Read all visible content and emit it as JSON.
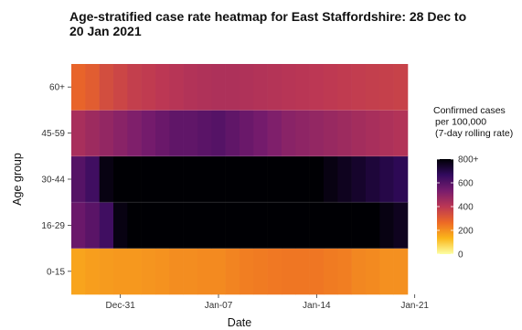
{
  "chart_data": {
    "type": "heatmap",
    "title": "Age-stratified case rate heatmap for East Staffordshire: 28 Dec to 20 Jan 2021",
    "xlabel": "Date",
    "ylabel": "Age group",
    "x_ticks": [
      "Dec-31",
      "Jan-07",
      "Jan-14",
      "Jan-21"
    ],
    "dates": [
      "2020-12-28",
      "2020-12-29",
      "2020-12-30",
      "2020-12-31",
      "2021-01-01",
      "2021-01-02",
      "2021-01-03",
      "2021-01-04",
      "2021-01-05",
      "2021-01-06",
      "2021-01-07",
      "2021-01-08",
      "2021-01-09",
      "2021-01-10",
      "2021-01-11",
      "2021-01-12",
      "2021-01-13",
      "2021-01-14",
      "2021-01-15",
      "2021-01-16",
      "2021-01-17",
      "2021-01-18",
      "2021-01-19",
      "2021-01-20"
    ],
    "age_groups": [
      "0-15",
      "16-29",
      "30-44",
      "45-59",
      "60+"
    ],
    "values": [
      [
        165,
        175,
        180,
        185,
        185,
        190,
        195,
        205,
        205,
        210,
        210,
        220,
        230,
        235,
        240,
        245,
        245,
        245,
        235,
        230,
        215,
        210,
        200,
        200
      ],
      [
        560,
        590,
        640,
        780,
        830,
        850,
        860,
        870,
        880,
        880,
        880,
        880,
        870,
        860,
        860,
        850,
        850,
        850,
        840,
        840,
        820,
        800,
        780,
        760
      ],
      [
        600,
        640,
        780,
        850,
        860,
        870,
        880,
        880,
        880,
        880,
        880,
        880,
        880,
        870,
        860,
        850,
        820,
        800,
        780,
        760,
        740,
        720,
        700,
        680
      ],
      [
        440,
        460,
        480,
        500,
        520,
        540,
        560,
        580,
        580,
        590,
        600,
        580,
        560,
        540,
        520,
        500,
        490,
        480,
        470,
        460,
        450,
        440,
        430,
        420
      ],
      [
        280,
        300,
        340,
        360,
        380,
        390,
        400,
        410,
        420,
        425,
        430,
        430,
        425,
        420,
        415,
        410,
        405,
        400,
        395,
        390,
        385,
        380,
        375,
        370
      ]
    ],
    "legend": {
      "title": [
        "Confirmed cases",
        "per 100,000",
        "(7-day rolling rate)"
      ],
      "ticks": [
        "0",
        "200",
        "400",
        "600",
        "800+"
      ],
      "range": [
        0,
        800
      ],
      "colors": [
        "#fcffa4",
        "#fbb61a",
        "#ed6925",
        "#bc3754",
        "#781c6d",
        "#320a5e",
        "#000004"
      ]
    }
  }
}
